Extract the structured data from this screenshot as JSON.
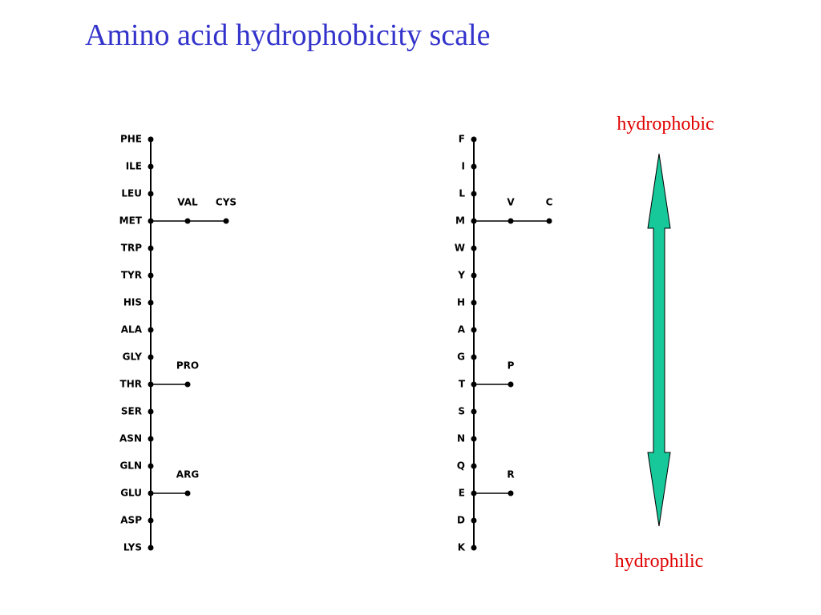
{
  "title": "Amino acid hydrophobicity scale",
  "scales": [
    {
      "rows": [
        {
          "label": "PHE"
        },
        {
          "label": "ILE"
        },
        {
          "label": "LEU"
        },
        {
          "label": "MET",
          "branches": [
            "VAL",
            "CYS"
          ]
        },
        {
          "label": "TRP"
        },
        {
          "label": "TYR"
        },
        {
          "label": "HIS"
        },
        {
          "label": "ALA"
        },
        {
          "label": "GLY"
        },
        {
          "label": "THR",
          "branches": [
            "PRO"
          ]
        },
        {
          "label": "SER"
        },
        {
          "label": "ASN"
        },
        {
          "label": "GLN"
        },
        {
          "label": "GLU",
          "branches": [
            "ARG"
          ]
        },
        {
          "label": "ASP"
        },
        {
          "label": "LYS"
        }
      ]
    },
    {
      "rows": [
        {
          "label": "F"
        },
        {
          "label": "I"
        },
        {
          "label": "L"
        },
        {
          "label": "M",
          "branches": [
            "V",
            "C"
          ]
        },
        {
          "label": "W"
        },
        {
          "label": "Y"
        },
        {
          "label": "H"
        },
        {
          "label": "A"
        },
        {
          "label": "G"
        },
        {
          "label": "T",
          "branches": [
            "P"
          ]
        },
        {
          "label": "S"
        },
        {
          "label": "N"
        },
        {
          "label": "Q"
        },
        {
          "label": "E",
          "branches": [
            "R"
          ]
        },
        {
          "label": "D"
        },
        {
          "label": "K"
        }
      ]
    }
  ],
  "arrow": {
    "top_label": "hydrophobic",
    "bottom_label": "hydrophilic"
  }
}
